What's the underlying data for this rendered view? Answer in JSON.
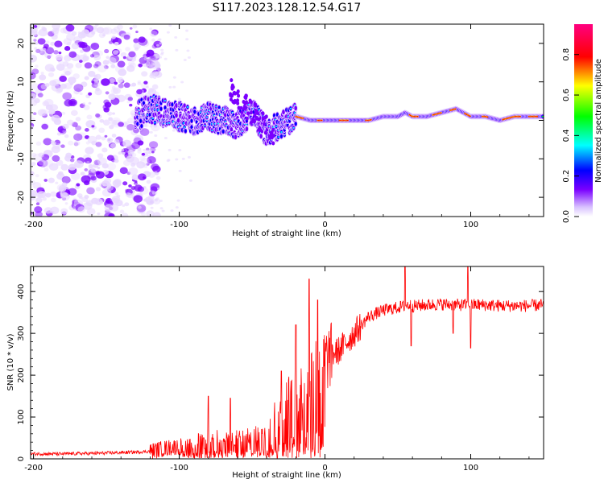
{
  "title": "S117.2023.128.12.54.G17",
  "colors": {
    "spectrum": [
      "#ffffff",
      "#e8d8ff",
      "#7a00ff",
      "#0000ff",
      "#00ffff",
      "#00ff00",
      "#ffff00",
      "#ff0000",
      "#ff0080"
    ],
    "snr_line": "#ff0000"
  },
  "chart_data": [
    {
      "type": "heatmap",
      "xlabel": "Height of straight line (km)",
      "ylabel": "Frequency (Hz)",
      "xlim": [
        -202,
        150
      ],
      "ylim": [
        -25,
        25
      ],
      "x_ticks": [
        "-200",
        "-100",
        "0",
        "100"
      ],
      "y_ticks": [
        "-20",
        "-10",
        "0",
        "10",
        "20"
      ],
      "colorbar": {
        "label": "Normalized spectral amplitude",
        "range": [
          0,
          0.95
        ],
        "ticks": [
          "0.0",
          "0.2",
          "0.4",
          "0.6",
          "0.8"
        ]
      },
      "features": {
        "noise_region_x": [
          -202,
          -122
        ],
        "ridge": {
          "x": [
            -130,
            -120,
            -110,
            -100,
            -90,
            -80,
            -70,
            -60,
            -50,
            -40,
            -30,
            -20,
            -10,
            0,
            10,
            20,
            30,
            40,
            50,
            55,
            60,
            70,
            80,
            90,
            100,
            110,
            120,
            130,
            140,
            150
          ],
          "y": [
            1,
            3,
            2,
            1,
            0,
            1,
            0,
            -1,
            2,
            -3,
            -1,
            1,
            0,
            0,
            0,
            0,
            0,
            1,
            1,
            2,
            1,
            1,
            2,
            3,
            1,
            1,
            0,
            1,
            1,
            1
          ]
        }
      }
    },
    {
      "type": "line",
      "xlabel": "Height of straight line (km)",
      "ylabel": "SNR (10 * v/v)",
      "xlim": [
        -202,
        150
      ],
      "ylim": [
        0,
        460
      ],
      "x_ticks": [
        "-200",
        "-100",
        "0",
        "100"
      ],
      "y_ticks": [
        "0",
        "100",
        "200",
        "300",
        "400"
      ],
      "series": [
        {
          "x": [
            -202,
            -180,
            -160,
            -140,
            -130,
            -120,
            -110,
            -100,
            -90,
            -80,
            -70,
            -60,
            -50,
            -40,
            -35,
            -30,
            -25,
            -20,
            -15,
            -10,
            -5,
            0,
            5,
            10,
            15,
            20,
            25,
            30,
            40,
            50,
            58,
            60,
            70,
            80,
            90,
            100,
            110,
            120,
            130,
            140,
            150
          ],
          "y": [
            12,
            12,
            13,
            15,
            16,
            18,
            25,
            30,
            40,
            45,
            55,
            50,
            55,
            70,
            80,
            100,
            120,
            150,
            180,
            200,
            230,
            235,
            250,
            260,
            280,
            300,
            320,
            340,
            355,
            362,
            368,
            365,
            368,
            370,
            368,
            368,
            368,
            366,
            366,
            366,
            368
          ],
          "spikes": [
            [
              -80,
              150
            ],
            [
              -65,
              145
            ],
            [
              -30,
              210
            ],
            [
              -20,
              320
            ],
            [
              -11,
              430
            ],
            [
              -5,
              380
            ],
            [
              55,
              470
            ],
            [
              59,
              270
            ],
            [
              88,
              300
            ],
            [
              98,
              460
            ],
            [
              100,
              265
            ]
          ]
        }
      ]
    }
  ]
}
